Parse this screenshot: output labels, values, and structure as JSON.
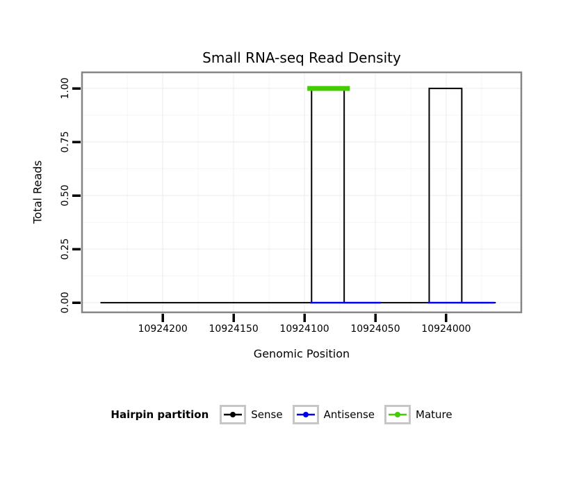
{
  "title": "Small RNA-seq Read Density",
  "axes": {
    "x": {
      "label": "Genomic Position",
      "ticks": [
        "10924200",
        "10924150",
        "10924100",
        "10924050",
        "10924000"
      ],
      "tick_values": [
        10924200,
        10924150,
        10924100,
        10924050,
        10924000
      ]
    },
    "y": {
      "label": "Total Reads",
      "ticks": [
        "0.00",
        "0.25",
        "0.50",
        "0.75",
        "1.00"
      ],
      "tick_values": [
        0,
        0.25,
        0.5,
        0.75,
        1
      ]
    }
  },
  "legend": {
    "title": "Hairpin partition",
    "entries": [
      {
        "label": "Sense",
        "color": "#000000"
      },
      {
        "label": "Antisense",
        "color": "#0000EE"
      },
      {
        "label": "Mature",
        "color": "#44CC00"
      }
    ]
  },
  "colors": {
    "panel_border": "#858585",
    "grid_major": "#ebebeb",
    "grid_minor": "#f5f5f5",
    "tick_marks": "#000000"
  },
  "chart_data": {
    "type": "line",
    "title": "Small RNA-seq Read Density",
    "xlabel": "Genomic Position",
    "ylabel": "Total Reads",
    "x_axis_reversed": true,
    "x_domain": [
      10924257,
      10923947
    ],
    "y_domain": [
      -0.045,
      1.075
    ],
    "x_tick_values": [
      10924200,
      10924150,
      10924100,
      10924050,
      10924000
    ],
    "y_tick_values": [
      0,
      0.25,
      0.5,
      0.75,
      1
    ],
    "x_minor_ticks": [
      10924225,
      10924175,
      10924125,
      10924075,
      10924025,
      10923975
    ],
    "y_minor_ticks": [
      0.125,
      0.375,
      0.625,
      0.875
    ],
    "legend_title": "Hairpin partition",
    "legend_position": "bottom",
    "grid": true,
    "series": [
      {
        "name": "Sense",
        "color": "#000000",
        "stroke_width": 2,
        "segments": [
          [
            [
              10924244,
              0
            ],
            [
              10924095,
              0
            ],
            [
              10924095,
              1
            ],
            [
              10924072,
              1
            ],
            [
              10924072,
              0
            ],
            [
              10924012,
              0
            ],
            [
              10924012,
              1
            ],
            [
              10923989,
              1
            ],
            [
              10923989,
              0
            ],
            [
              10923965,
              0
            ]
          ]
        ]
      },
      {
        "name": "Antisense",
        "color": "#0000EE",
        "stroke_width": 2.5,
        "segments": [
          [
            [
              10924096,
              0
            ],
            [
              10924046,
              0
            ]
          ],
          [
            [
              10924013,
              0
            ],
            [
              10923966,
              0
            ]
          ]
        ]
      },
      {
        "name": "Mature",
        "color": "#44CC00",
        "stroke_width": 7,
        "segments": [
          [
            [
              10924098,
              1
            ],
            [
              10924068,
              1
            ]
          ]
        ]
      }
    ]
  }
}
